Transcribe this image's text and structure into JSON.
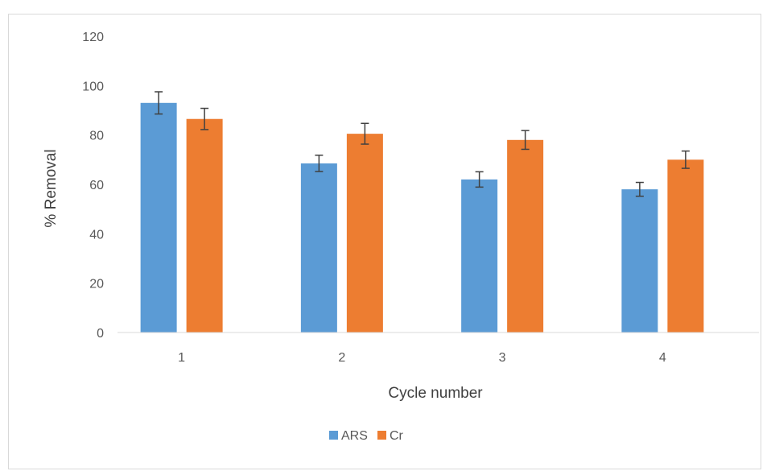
{
  "chart_data": {
    "type": "bar",
    "title": "",
    "xlabel": "Cycle number",
    "ylabel": "% Removal",
    "categories": [
      "1",
      "2",
      "3",
      "4"
    ],
    "ylim": [
      0,
      120
    ],
    "yticks": [
      0,
      20,
      40,
      60,
      80,
      100,
      120
    ],
    "grid": false,
    "legend_position": "bottom",
    "error_bars": true,
    "series": [
      {
        "name": "ARS",
        "color": "#5b9bd5",
        "values": [
          93,
          68.5,
          62,
          58
        ],
        "errors": [
          4.5,
          3.3,
          3.1,
          2.8
        ]
      },
      {
        "name": "Cr",
        "color": "#ed7d31",
        "values": [
          86.5,
          80.5,
          78,
          70
        ],
        "errors": [
          4.3,
          4.2,
          3.8,
          3.5
        ]
      }
    ]
  }
}
